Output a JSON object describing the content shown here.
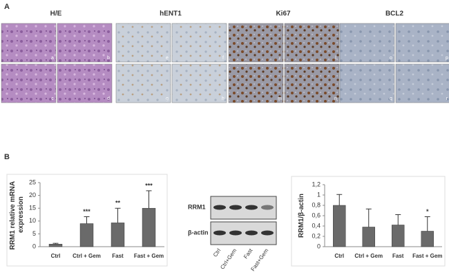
{
  "panel_a": {
    "label": "A",
    "groups": [
      {
        "title": "H/E",
        "images": [
          "a",
          "b",
          "c",
          "d"
        ]
      },
      {
        "title": "hENT1",
        "images": [
          "e",
          "f",
          "g",
          "h"
        ]
      },
      {
        "title": "Ki67",
        "images": [
          "i",
          "l",
          "m",
          "n"
        ]
      },
      {
        "title": "BCL2",
        "images": [
          "o",
          "p",
          "q",
          "r"
        ]
      }
    ]
  },
  "panel_b": {
    "label": "B"
  },
  "blot": {
    "rows": [
      "RRM1",
      "β-actin"
    ],
    "lanes": [
      "Ctrl",
      "Ctrl+Gem",
      "Fast",
      "Fast+Gem"
    ]
  },
  "chart_data": [
    {
      "type": "bar",
      "ylabel": "RRM1 relative mRNA expression",
      "categories": [
        "Ctrl",
        "Ctrl + Gem",
        "Fast",
        "Fast + Gem"
      ],
      "values": [
        1,
        9,
        9.3,
        15
      ],
      "errors": [
        0.3,
        2.7,
        5.7,
        6.8
      ],
      "value_annotations": [
        null,
        "***",
        "**",
        "***"
      ],
      "color": "#6a6a6a",
      "ylim": [
        0,
        25
      ],
      "yticks": [
        0,
        5,
        10,
        15,
        20,
        25
      ]
    },
    {
      "type": "bar",
      "ylabel": "RRM1/β-actin",
      "categories": [
        "Ctrl",
        "Ctrl + Gem",
        "Fast",
        "Fast + Gem"
      ],
      "values": [
        0.8,
        0.38,
        0.42,
        0.3
      ],
      "errors": [
        0.21,
        0.35,
        0.2,
        0.28
      ],
      "value_annotations": [
        null,
        null,
        null,
        "*"
      ],
      "color": "#6a6a6a",
      "ylim": [
        0,
        1.2
      ],
      "yticks": [
        0,
        {
          "value": 0.2,
          "label": "0,2"
        },
        {
          "value": 0.4,
          "label": "0,4"
        },
        {
          "value": 0.6,
          "label": "0,6"
        },
        {
          "value": 0.8,
          "label": "0,8"
        },
        1,
        {
          "value": 1.2,
          "label": "1,2"
        }
      ]
    }
  ]
}
